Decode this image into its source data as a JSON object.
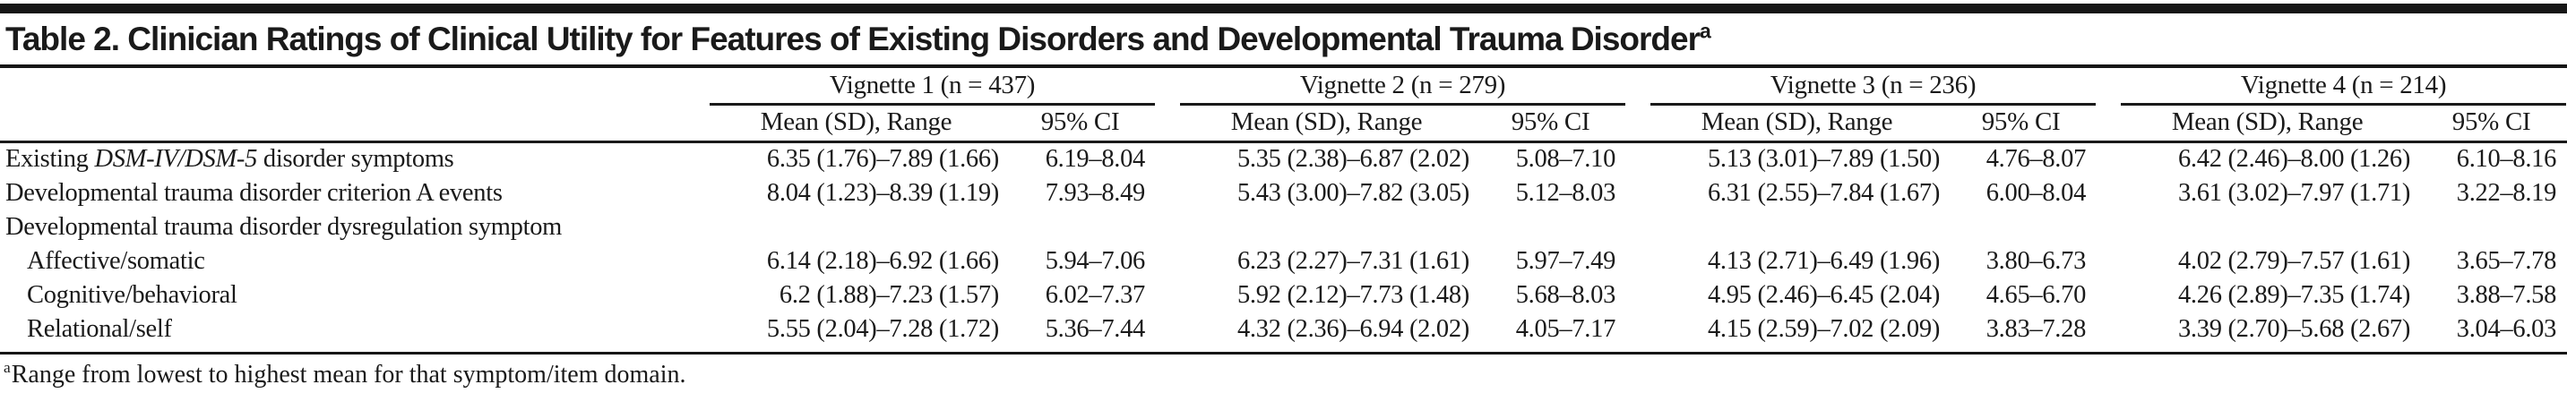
{
  "title": {
    "text": "Table 2. Clinician Ratings of Clinical Utility for Features of Existing Disorders and Developmental Trauma Disorder",
    "superscript": "a"
  },
  "table": {
    "groups": [
      {
        "label": "Vignette 1 (n = 437)",
        "sub_mean": "Mean (SD), Range",
        "sub_ci": "95% CI"
      },
      {
        "label": "Vignette 2 (n = 279)",
        "sub_mean": "Mean (SD), Range",
        "sub_ci": "95% CI"
      },
      {
        "label": "Vignette 3 (n = 236)",
        "sub_mean": "Mean (SD), Range",
        "sub_ci": "95% CI"
      },
      {
        "label": "Vignette 4 (n = 214)",
        "sub_mean": "Mean (SD), Range",
        "sub_ci": "95% CI"
      }
    ],
    "rows": [
      {
        "label_pre": "Existing ",
        "label_italic": "DSM-IV/DSM-5",
        "label_post": " disorder symptoms",
        "v1_mean": "6.35 (1.76)–7.89 (1.66)",
        "v1_ci": "6.19–8.04",
        "v2_mean": "5.35 (2.38)–6.87 (2.02)",
        "v2_ci": "5.08–7.10",
        "v3_mean": "5.13 (3.01)–7.89 (1.50)",
        "v3_ci": "4.76–8.07",
        "v4_mean": "6.42 (2.46)–8.00 (1.26)",
        "v4_ci": "6.10–8.16"
      },
      {
        "label": "Developmental trauma disorder criterion A events",
        "v1_mean": "8.04 (1.23)–8.39 (1.19)",
        "v1_ci": "7.93–8.49",
        "v2_mean": "5.43 (3.00)–7.82 (3.05)",
        "v2_ci": "5.12–8.03",
        "v3_mean": "6.31 (2.55)–7.84 (1.67)",
        "v3_ci": "6.00–8.04",
        "v4_mean": "3.61 (3.02)–7.97 (1.71)",
        "v4_ci": "3.22–8.19"
      },
      {
        "label": "Developmental trauma disorder dysregulation symptom"
      },
      {
        "label": "Affective/somatic",
        "v1_mean": "6.14 (2.18)–6.92 (1.66)",
        "v1_ci": "5.94–7.06",
        "v2_mean": "6.23 (2.27)–7.31 (1.61)",
        "v2_ci": "5.97–7.49",
        "v3_mean": "4.13 (2.71)–6.49 (1.96)",
        "v3_ci": "3.80–6.73",
        "v4_mean": "4.02 (2.79)–7.57 (1.61)",
        "v4_ci": "3.65–7.78"
      },
      {
        "label": "Cognitive/behavioral",
        "v1_mean": "6.2 (1.88)–7.23 (1.57)",
        "v1_ci": "6.02–7.37",
        "v2_mean": "5.92 (2.12)–7.73 (1.48)",
        "v2_ci": "5.68–8.03",
        "v3_mean": "4.95 (2.46)–6.45 (2.04)",
        "v3_ci": "4.65–6.70",
        "v4_mean": "4.26 (2.89)–7.35 (1.74)",
        "v4_ci": "3.88–7.58"
      },
      {
        "label": "Relational/self",
        "v1_mean": "5.55 (2.04)–7.28 (1.72)",
        "v1_ci": "5.36–7.44",
        "v2_mean": "4.32 (2.36)–6.94 (2.02)",
        "v2_ci": "4.05–7.17",
        "v3_mean": "4.15 (2.59)–7.02 (2.09)",
        "v3_ci": "3.83–7.28",
        "v4_mean": "3.39 (2.70)–5.68 (2.67)",
        "v4_ci": "3.04–6.03"
      }
    ]
  },
  "footnote": {
    "marker": "a",
    "text": "Range from lowest to highest mean for that symptom/item domain."
  },
  "colors": {
    "ink": "#1a1a1a",
    "rule": "#161616",
    "background": "#ffffff"
  }
}
